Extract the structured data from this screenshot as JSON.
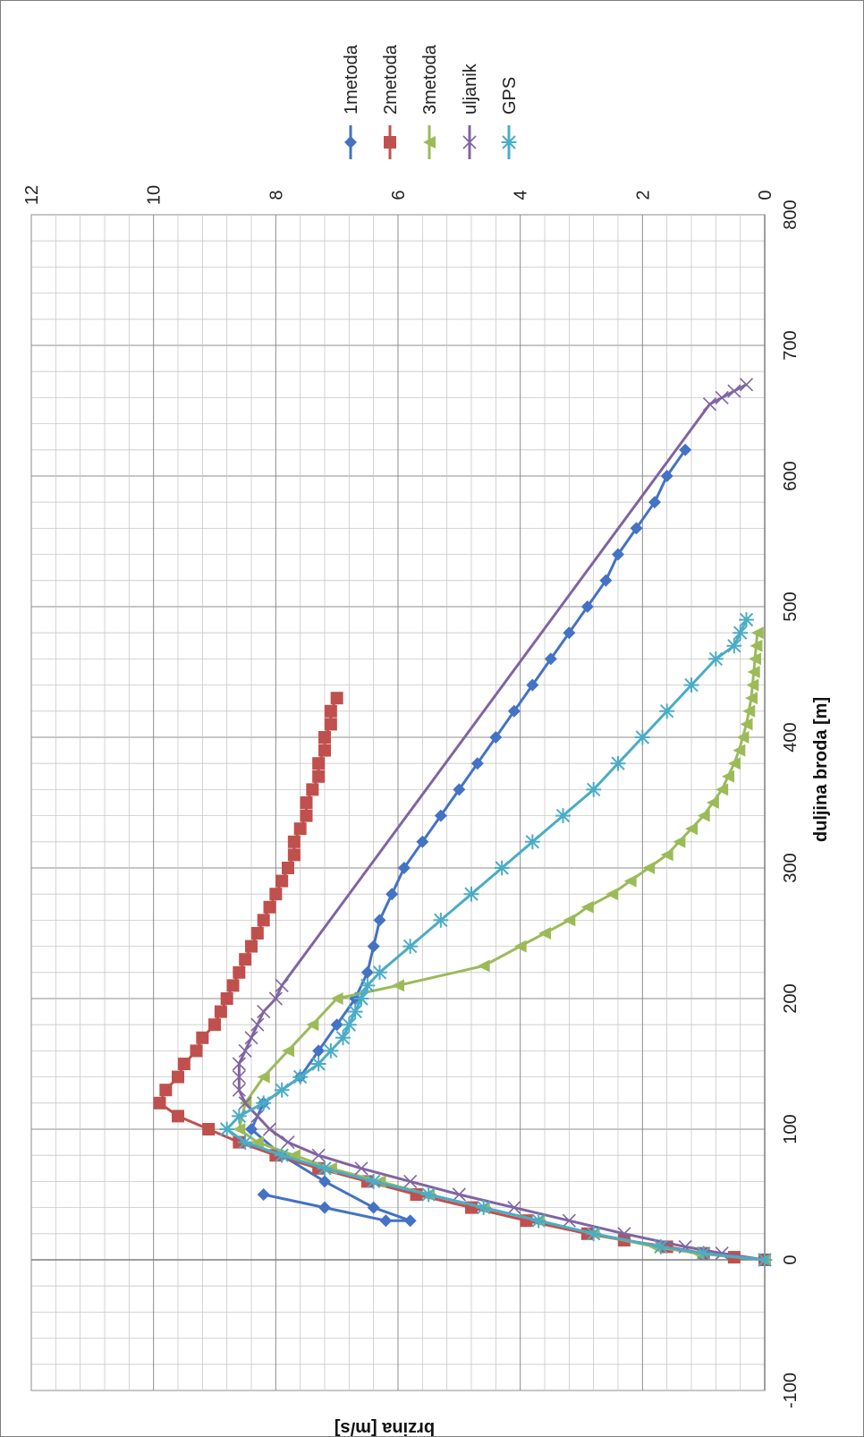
{
  "chart_data": {
    "type": "line",
    "orientation": "rotated-90-clockwise",
    "xlabel": "duljina broda [m]",
    "ylabel": "brzina [m/s]",
    "xlim": [
      -100,
      800
    ],
    "ylim": [
      0,
      12
    ],
    "x_ticks": [
      -100,
      0,
      100,
      200,
      300,
      400,
      500,
      600,
      700,
      800
    ],
    "y_ticks": [
      0,
      2,
      4,
      6,
      8,
      10,
      12
    ],
    "grid": true,
    "legend_position": "top",
    "series": [
      {
        "name": "1metoda",
        "color": "#4472c4",
        "marker": "diamond",
        "marker_size": 7,
        "x": [
          50,
          40,
          30,
          30,
          40,
          60,
          80,
          100,
          120,
          140,
          160,
          180,
          200,
          220,
          240,
          260,
          280,
          300,
          320,
          340,
          360,
          380,
          400,
          420,
          440,
          460,
          480,
          500,
          520,
          540,
          560,
          580,
          600,
          620
        ],
        "y": [
          8.2,
          7.2,
          6.2,
          5.8,
          6.4,
          7.2,
          7.9,
          8.4,
          8.2,
          7.6,
          7.3,
          7.0,
          6.7,
          6.5,
          6.4,
          6.3,
          6.1,
          5.9,
          5.6,
          5.3,
          5.0,
          4.7,
          4.4,
          4.1,
          3.8,
          3.5,
          3.2,
          2.9,
          2.6,
          2.4,
          2.1,
          1.8,
          1.6,
          1.3
        ]
      },
      {
        "name": "2metoda",
        "color": "#c0504d",
        "marker": "square",
        "marker_size": 7,
        "x": [
          0,
          2,
          5,
          10,
          15,
          20,
          30,
          40,
          50,
          60,
          70,
          80,
          90,
          100,
          110,
          120,
          130,
          140,
          150,
          160,
          170,
          180,
          190,
          200,
          210,
          220,
          230,
          240,
          250,
          260,
          270,
          280,
          290,
          300,
          310,
          320,
          330,
          340,
          350,
          360,
          370,
          380,
          390,
          400,
          410,
          420,
          430
        ],
        "y": [
          0.0,
          0.5,
          1.0,
          1.6,
          2.3,
          2.9,
          3.9,
          4.8,
          5.7,
          6.5,
          7.3,
          8.0,
          8.6,
          9.1,
          9.6,
          9.9,
          9.8,
          9.6,
          9.5,
          9.3,
          9.2,
          9.0,
          8.9,
          8.8,
          8.7,
          8.6,
          8.5,
          8.4,
          8.3,
          8.2,
          8.1,
          8.0,
          7.9,
          7.8,
          7.7,
          7.7,
          7.6,
          7.5,
          7.5,
          7.4,
          7.3,
          7.3,
          7.2,
          7.2,
          7.1,
          7.1,
          7.0
        ]
      },
      {
        "name": "3metoda",
        "color": "#9bbb59",
        "marker": "triangle",
        "marker_size": 7,
        "x": [
          0,
          5,
          10,
          20,
          30,
          40,
          50,
          60,
          70,
          80,
          90,
          100,
          120,
          140,
          160,
          180,
          200,
          210,
          225,
          240,
          250,
          260,
          270,
          280,
          290,
          300,
          310,
          320,
          330,
          340,
          350,
          360,
          370,
          380,
          390,
          400,
          410,
          420,
          430,
          440,
          450,
          460,
          470,
          480
        ],
        "y": [
          0.0,
          1.1,
          1.8,
          2.8,
          3.7,
          4.6,
          5.5,
          6.3,
          7.1,
          7.7,
          8.3,
          8.6,
          8.5,
          8.2,
          7.8,
          7.4,
          7.0,
          6.0,
          4.6,
          4.0,
          3.6,
          3.2,
          2.9,
          2.5,
          2.2,
          1.9,
          1.6,
          1.4,
          1.2,
          1.0,
          0.85,
          0.7,
          0.6,
          0.5,
          0.42,
          0.36,
          0.3,
          0.26,
          0.22,
          0.2,
          0.18,
          0.16,
          0.14,
          0.12
        ]
      },
      {
        "name": "uljanik",
        "color": "#8064a2",
        "marker": "x",
        "marker_size": 7,
        "x": [
          0,
          5,
          10,
          20,
          30,
          40,
          50,
          60,
          70,
          80,
          90,
          100,
          110,
          120,
          130,
          140,
          150,
          160,
          170,
          180,
          190,
          200,
          210,
          655,
          660,
          665,
          670
        ],
        "y": [
          0.0,
          0.7,
          1.3,
          2.3,
          3.2,
          4.1,
          5.0,
          5.8,
          6.6,
          7.3,
          7.8,
          8.1,
          8.3,
          8.5,
          8.6,
          8.6,
          8.6,
          8.5,
          8.4,
          8.3,
          8.2,
          8.0,
          7.9,
          0.9,
          0.7,
          0.5,
          0.3
        ]
      },
      {
        "name": "GPS",
        "color": "#4bacc6",
        "marker": "star",
        "marker_size": 7,
        "x": [
          0,
          5,
          10,
          20,
          30,
          40,
          50,
          60,
          70,
          80,
          90,
          100,
          110,
          120,
          130,
          140,
          150,
          160,
          170,
          180,
          190,
          200,
          210,
          220,
          240,
          260,
          280,
          300,
          320,
          340,
          360,
          380,
          400,
          420,
          440,
          460,
          470,
          480,
          490
        ],
        "y": [
          0.0,
          1.0,
          1.7,
          2.8,
          3.7,
          4.6,
          5.5,
          6.4,
          7.2,
          7.9,
          8.5,
          8.8,
          8.6,
          8.2,
          7.9,
          7.6,
          7.3,
          7.1,
          6.9,
          6.8,
          6.7,
          6.6,
          6.5,
          6.3,
          5.8,
          5.3,
          4.8,
          4.3,
          3.8,
          3.3,
          2.8,
          2.4,
          2.0,
          1.6,
          1.2,
          0.8,
          0.5,
          0.4,
          0.3
        ]
      }
    ]
  }
}
